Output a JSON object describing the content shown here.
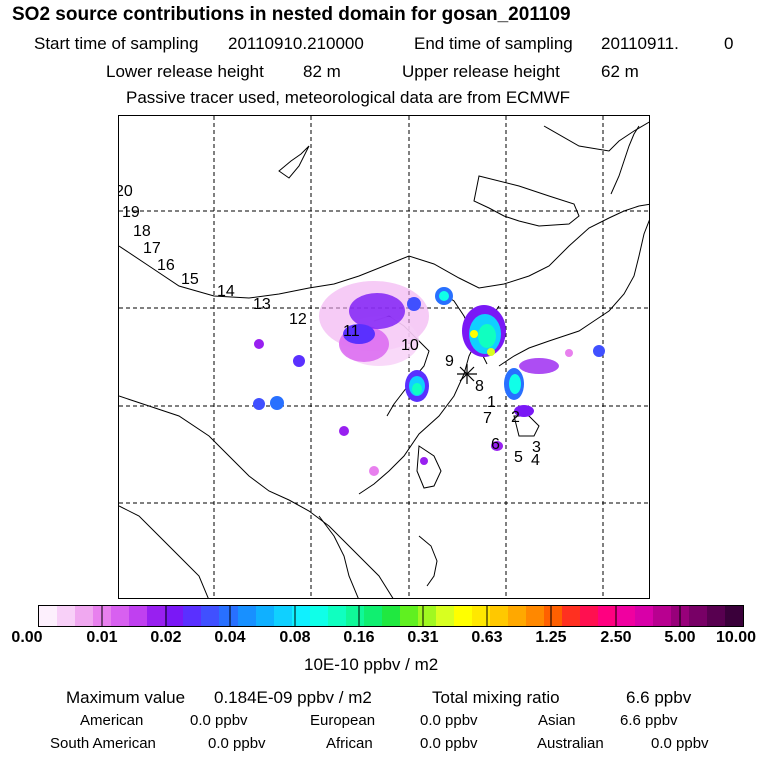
{
  "title": "SO2 source contributions in nested domain for gosan_201109",
  "header": {
    "start_label": "Start time of sampling",
    "start_value": "20110910.210000",
    "end_label": "End time of sampling",
    "end_value": "20110911.",
    "end_suffix": "0",
    "lower_label": "Lower release height",
    "lower_value": "82 m",
    "upper_label": "Upper release height",
    "upper_value": "62 m",
    "note": "Passive tracer used, meteorological data are from ECMWF"
  },
  "trajectory_labels": [
    "20",
    "19",
    "18",
    "17",
    "16",
    "15",
    "14",
    "13",
    "12",
    "11",
    "10",
    "9",
    "8",
    "1",
    "7",
    "2",
    "6",
    "3",
    "5",
    "4"
  ],
  "colorbar": {
    "ticks": [
      "0.00",
      "0.01",
      "0.02",
      "0.04",
      "0.08",
      "0.16",
      "0.31",
      "0.63",
      "1.25",
      "2.50",
      "5.00",
      "10.00"
    ],
    "unit": "10E-10 ppbv / m2",
    "colors": [
      "#fdf0fd",
      "#f8d0f8",
      "#f0a8f0",
      "#e880ee",
      "#d860f0",
      "#c040f0",
      "#9820f0",
      "#7a18f6",
      "#5a30ff",
      "#4050ff",
      "#2870ff",
      "#1890ff",
      "#10b0ff",
      "#10d0ff",
      "#10f0ff",
      "#10ffe8",
      "#10ffc0",
      "#10f898",
      "#10ef70",
      "#20e840",
      "#60f020",
      "#a0f820",
      "#d8ff20",
      "#ffff00",
      "#ffe800",
      "#ffc800",
      "#ffa800",
      "#ff8800",
      "#ff6000",
      "#ff3020",
      "#ff1050",
      "#ff0080",
      "#f000a0",
      "#d800a8",
      "#b80090",
      "#98007a",
      "#780066",
      "#580050",
      "#3a003a"
    ]
  },
  "stats": {
    "max_label": "Maximum value",
    "max_value": "0.184E-09 ppbv / m2",
    "total_label": "Total mixing ratio",
    "total_value": "6.6 ppbv",
    "regions": [
      {
        "name": "American",
        "value": "0.0 ppbv"
      },
      {
        "name": "European",
        "value": "0.0 ppbv"
      },
      {
        "name": "Asian",
        "value": "6.6 ppbv"
      },
      {
        "name": "South American",
        "value": "0.0 ppbv"
      },
      {
        "name": "African",
        "value": "0.0 ppbv"
      },
      {
        "name": "Australian",
        "value": "0.0 ppbv"
      }
    ]
  }
}
